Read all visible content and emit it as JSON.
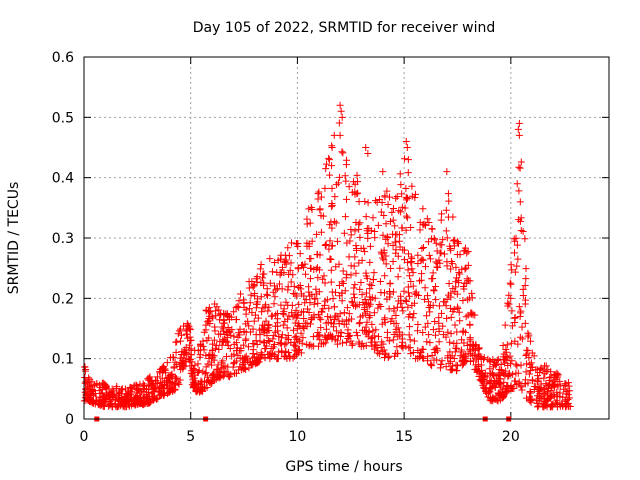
{
  "chart_data": {
    "type": "scatter",
    "title": "Day 105 of 2022, SRMTID for receiver wind",
    "xlabel": "GPS time / hours",
    "ylabel": "SRMTID / TECUs",
    "xlim": [
      0,
      24.6
    ],
    "ylim": [
      0,
      0.6
    ],
    "xticks": [
      0,
      5,
      10,
      15,
      20
    ],
    "yticks": [
      0,
      0.1,
      0.2,
      0.3,
      0.4,
      0.5,
      0.6
    ],
    "xtick_labels": [
      "0",
      "5",
      "10",
      "15",
      "20"
    ],
    "ytick_labels": [
      "0",
      "0.1",
      "0.2",
      "0.3",
      "0.4",
      "0.5",
      "0.6"
    ],
    "grid": true,
    "marker": "+",
    "color": "#ff0000",
    "gap_markers_x": [
      0.6,
      5.7,
      18.8,
      19.9
    ],
    "series": [
      {
        "name": "SRMTID",
        "profile": {
          "x": [
            0.0,
            0.2,
            0.5,
            1.0,
            2.0,
            3.0,
            3.8,
            4.4,
            4.7,
            4.9,
            5.1,
            5.4,
            5.7,
            6.0,
            6.5,
            7.0,
            7.5,
            8.0,
            8.5,
            9.0,
            9.5,
            10.0,
            10.5,
            11.0,
            11.5,
            12.0,
            12.5,
            13.0,
            13.5,
            14.0,
            14.5,
            15.0,
            15.5,
            16.0,
            16.5,
            17.0,
            17.5,
            18.0,
            18.5,
            19.0,
            19.5,
            20.0,
            20.4,
            20.8,
            21.2,
            22.0,
            22.8
          ],
          "low": [
            0.03,
            0.03,
            0.025,
            0.02,
            0.02,
            0.025,
            0.04,
            0.05,
            0.09,
            0.1,
            0.05,
            0.04,
            0.05,
            0.06,
            0.07,
            0.07,
            0.08,
            0.09,
            0.1,
            0.1,
            0.1,
            0.1,
            0.12,
            0.12,
            0.13,
            0.12,
            0.12,
            0.12,
            0.12,
            0.1,
            0.1,
            0.12,
            0.1,
            0.1,
            0.08,
            0.08,
            0.08,
            0.1,
            0.07,
            0.03,
            0.03,
            0.05,
            0.05,
            0.03,
            0.02,
            0.02,
            0.02
          ],
          "high": [
            0.1,
            0.07,
            0.06,
            0.06,
            0.05,
            0.07,
            0.09,
            0.14,
            0.17,
            0.17,
            0.12,
            0.13,
            0.18,
            0.2,
            0.18,
            0.18,
            0.23,
            0.25,
            0.27,
            0.27,
            0.29,
            0.3,
            0.35,
            0.38,
            0.45,
            0.5,
            0.42,
            0.41,
            0.35,
            0.4,
            0.38,
            0.45,
            0.4,
            0.34,
            0.3,
            0.4,
            0.3,
            0.28,
            0.12,
            0.1,
            0.1,
            0.25,
            0.5,
            0.19,
            0.1,
            0.08,
            0.06
          ],
          "point_count": 2200
        },
        "spikes": [
          {
            "x": 12.0,
            "y": 0.52
          },
          {
            "x": 12.05,
            "y": 0.51
          },
          {
            "x": 12.1,
            "y": 0.5
          },
          {
            "x": 12.0,
            "y": 0.47
          },
          {
            "x": 13.2,
            "y": 0.45
          },
          {
            "x": 13.3,
            "y": 0.44
          },
          {
            "x": 15.1,
            "y": 0.46
          },
          {
            "x": 15.15,
            "y": 0.45
          },
          {
            "x": 15.2,
            "y": 0.43
          },
          {
            "x": 17.0,
            "y": 0.41
          },
          {
            "x": 20.4,
            "y": 0.49
          },
          {
            "x": 20.35,
            "y": 0.48
          },
          {
            "x": 20.4,
            "y": 0.47
          },
          {
            "x": 20.3,
            "y": 0.39
          },
          {
            "x": 11.5,
            "y": 0.43
          },
          {
            "x": 11.6,
            "y": 0.42
          },
          {
            "x": 14.0,
            "y": 0.41
          },
          {
            "x": 14.1,
            "y": 0.37
          }
        ]
      }
    ]
  }
}
